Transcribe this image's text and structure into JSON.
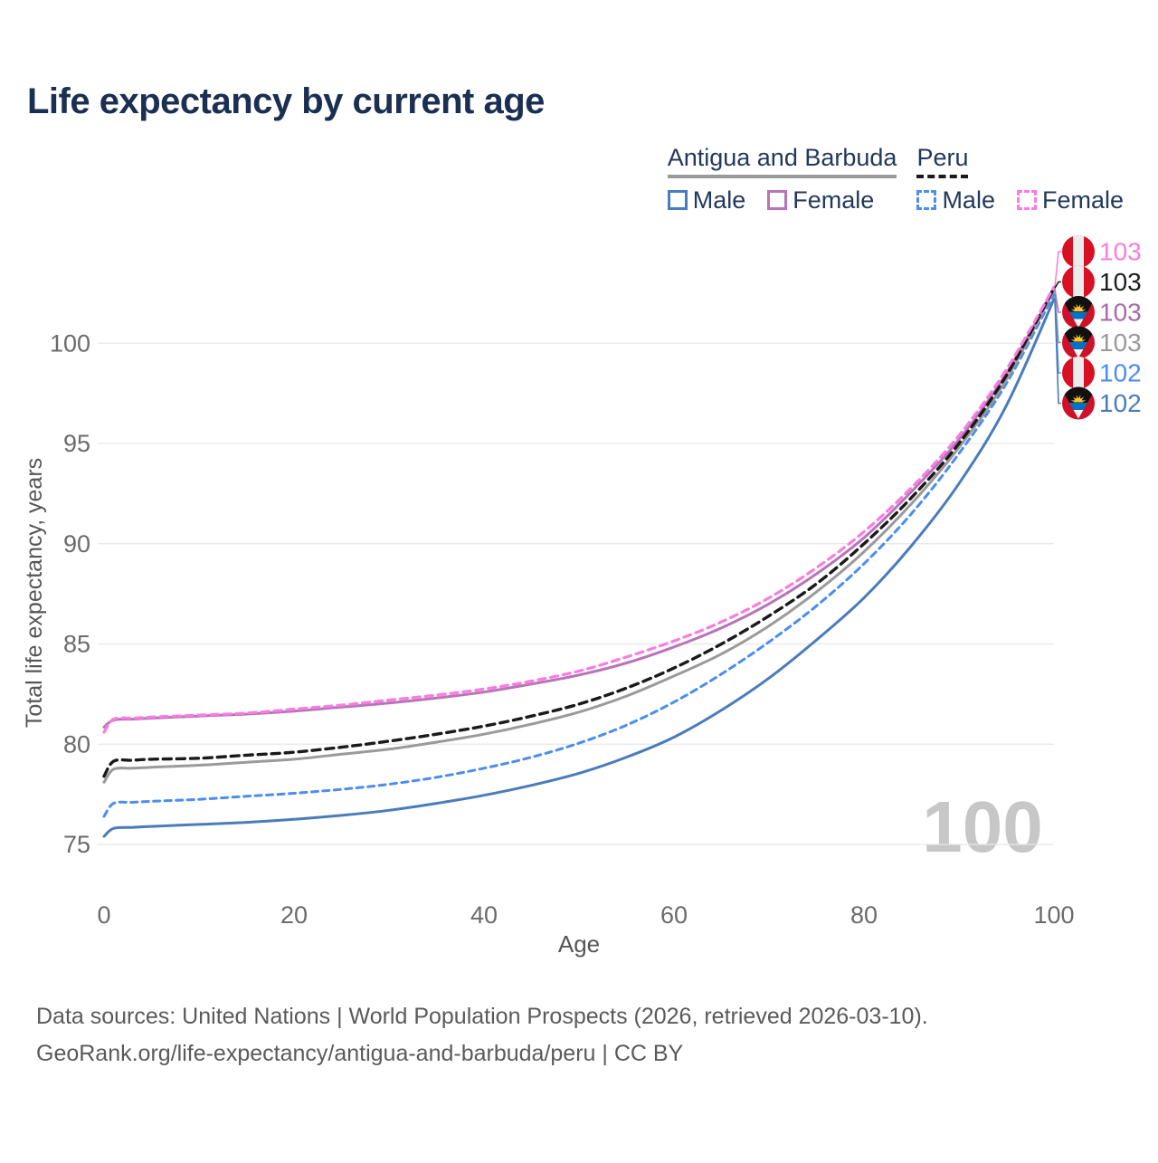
{
  "header": {
    "title": "Life expectancy by current age"
  },
  "legend": {
    "groups": [
      {
        "label": "Antigua and Barbuda",
        "line_style": "solid",
        "underline_color": "#9a9a9a",
        "items": [
          {
            "label": "Male",
            "color": "#4a7cbb",
            "dashed": false
          },
          {
            "label": "Female",
            "color": "#b874b8",
            "dashed": false
          }
        ]
      },
      {
        "label": "Peru",
        "line_style": "dashed",
        "underline_color": "#1a1a1a",
        "items": [
          {
            "label": "Male",
            "color": "#4b8df0",
            "dashed": true
          },
          {
            "label": "Female",
            "color": "#fb7ce0",
            "dashed": true
          }
        ]
      }
    ]
  },
  "chart_data": {
    "type": "line",
    "title": "Life expectancy by current age",
    "xlabel": "Age",
    "ylabel": "Total life expectancy, years",
    "x_ticks": [
      0,
      20,
      40,
      60,
      80,
      100
    ],
    "y_ticks": [
      75,
      80,
      85,
      90,
      95,
      100
    ],
    "xlim": [
      0,
      100
    ],
    "ylim": [
      75,
      100
    ],
    "grid": "horizontal",
    "legend_position": "top-right",
    "watermark": "100",
    "x": [
      0,
      1,
      3,
      5,
      10,
      15,
      20,
      25,
      30,
      35,
      40,
      45,
      50,
      55,
      60,
      65,
      70,
      75,
      80,
      85,
      90,
      95,
      100
    ],
    "series": [
      {
        "name": "Peru Female",
        "country": "Peru",
        "sex": "Female",
        "color": "#fb7ce0",
        "label_color": "#fb7ce0",
        "dashed": true,
        "dash": "8 6",
        "width": 3.2,
        "flag": "peru",
        "end_label": "103",
        "values": [
          80.6,
          81.25,
          81.3,
          81.35,
          81.45,
          81.55,
          81.75,
          81.95,
          82.2,
          82.45,
          82.75,
          83.15,
          83.65,
          84.35,
          85.15,
          86.1,
          87.3,
          88.8,
          90.6,
          92.8,
          95.4,
          98.7,
          102.8
        ]
      },
      {
        "name": "Peru",
        "country": "Peru",
        "sex": "Both",
        "color": "#1a1a1a",
        "label_color": "#1d1d1d",
        "dashed": true,
        "dash": "9 6",
        "width": 3.4,
        "flag": "peru",
        "end_label": "103",
        "values": [
          78.4,
          79.15,
          79.2,
          79.25,
          79.3,
          79.45,
          79.6,
          79.85,
          80.15,
          80.5,
          80.9,
          81.4,
          82.0,
          82.8,
          83.8,
          85.0,
          86.4,
          88.0,
          90.0,
          92.3,
          95.0,
          98.4,
          102.75
        ]
      },
      {
        "name": "Antigua and Barbuda Female",
        "country": "Antigua and Barbuda",
        "sex": "Female",
        "color": "#b874b8",
        "label_color": "#a869a8",
        "dashed": false,
        "dash": "",
        "width": 3,
        "flag": "antigua",
        "end_label": "103",
        "values": [
          80.85,
          81.2,
          81.25,
          81.3,
          81.4,
          81.5,
          81.65,
          81.85,
          82.05,
          82.3,
          82.6,
          83.0,
          83.45,
          84.05,
          84.85,
          85.8,
          87.0,
          88.5,
          90.3,
          92.6,
          95.2,
          98.5,
          102.7
        ]
      },
      {
        "name": "Antigua and Barbuda",
        "country": "Antigua and Barbuda",
        "sex": "Both",
        "color": "#9a9a9a",
        "label_color": "#9a9a9a",
        "dashed": false,
        "dash": "",
        "width": 3,
        "flag": "antigua",
        "end_label": "103",
        "values": [
          78.1,
          78.75,
          78.8,
          78.85,
          78.95,
          79.1,
          79.25,
          79.5,
          79.75,
          80.1,
          80.5,
          81.0,
          81.6,
          82.4,
          83.4,
          84.5,
          85.9,
          87.6,
          89.6,
          92.0,
          94.8,
          98.2,
          102.65
        ]
      },
      {
        "name": "Peru Male",
        "country": "Peru",
        "sex": "Male",
        "color": "#4b8df0",
        "label_color": "#4b8df0",
        "dashed": true,
        "dash": "7 5.5",
        "width": 3,
        "flag": "peru",
        "end_label": "102",
        "values": [
          76.4,
          77.05,
          77.1,
          77.15,
          77.25,
          77.4,
          77.55,
          77.75,
          78.0,
          78.35,
          78.8,
          79.35,
          80.05,
          80.95,
          82.1,
          83.5,
          85.1,
          86.9,
          89.0,
          91.5,
          94.5,
          98.0,
          102.45
        ]
      },
      {
        "name": "Antigua and Barbuda Male",
        "country": "Antigua and Barbuda",
        "sex": "Male",
        "color": "#4a7cbb",
        "label_color": "#4a7cbb",
        "dashed": false,
        "dash": "",
        "width": 3,
        "flag": "antigua",
        "end_label": "102",
        "values": [
          75.4,
          75.8,
          75.85,
          75.9,
          76.0,
          76.1,
          76.25,
          76.45,
          76.7,
          77.05,
          77.45,
          77.95,
          78.55,
          79.35,
          80.35,
          81.7,
          83.3,
          85.2,
          87.3,
          89.9,
          93.0,
          96.9,
          102.2
        ]
      }
    ]
  },
  "colors": {
    "title": "#1b2f52",
    "legend_text": "#22395c",
    "grid": "#e7e7e7",
    "tick_label": "#6b6b6b",
    "axis_title": "#565656",
    "watermark": "#c7c7c7",
    "peru_flag_red": "#D91023",
    "peru_flag_white": "#ececec",
    "antigua_flag_red": "#CE1126",
    "antigua_flag_black": "#111111",
    "antigua_flag_blue": "#0072C6",
    "antigua_flag_white": "#f5f5f5",
    "antigua_flag_gold": "#FFC726"
  },
  "footer": {
    "line1": "Data sources: United Nations | World Population Prospects (2026, retrieved 2026-03-10).",
    "line2": "GeoRank.org/life-expectancy/antigua-and-barbuda/peru | CC BY"
  }
}
